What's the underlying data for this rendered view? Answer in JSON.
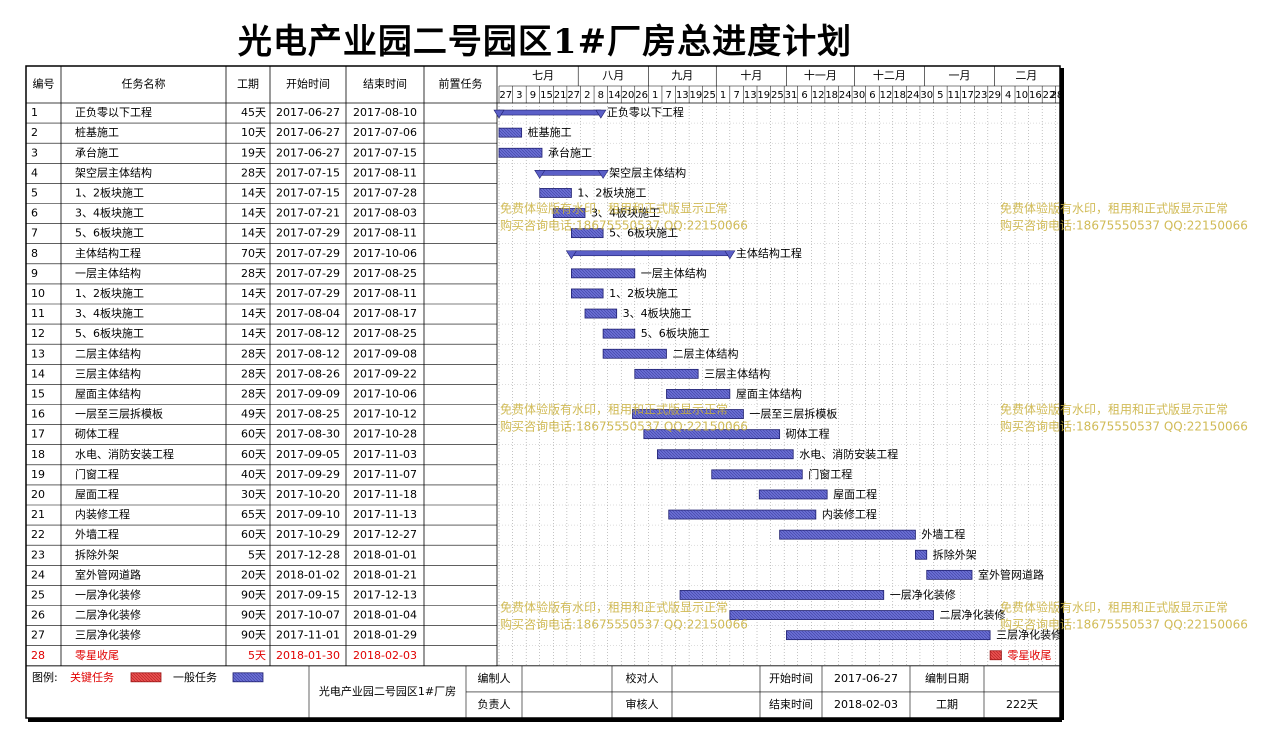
{
  "page_title": "光电产业园二号园区1#厂房总进度计划",
  "colors": {
    "normal_bar": "#5b5fc7",
    "critical_bar": "#e03c3c",
    "critical_text": "#e00000",
    "watermark": "#c9b03a",
    "frame": "#000000"
  },
  "columns": {
    "id": "编号",
    "name": "任务名称",
    "duration": "工期",
    "start": "开始时间",
    "end": "结束时间",
    "pred": "前置任务"
  },
  "months": [
    "七月",
    "八月",
    "九月",
    "十月",
    "十一月",
    "十二月",
    "一月",
    "二月"
  ],
  "day_ticks": [
    "27",
    "3",
    "9",
    "15",
    "21",
    "27",
    "2",
    "8",
    "14",
    "20",
    "26",
    "1",
    "7",
    "13",
    "19",
    "25",
    "1",
    "7",
    "13",
    "19",
    "25",
    "31",
    "6",
    "12",
    "18",
    "24",
    "30",
    "6",
    "12",
    "18",
    "24",
    "30",
    "5",
    "11",
    "17",
    "23",
    "29",
    "4",
    "10",
    "16",
    "22",
    "28"
  ],
  "tasks": [
    {
      "id": "1",
      "name": "正负零以下工程",
      "duration": "45天",
      "start": "2017-06-27",
      "end": "2017-08-10",
      "summary": true,
      "critical": false
    },
    {
      "id": "2",
      "name": "桩基施工",
      "duration": "10天",
      "start": "2017-06-27",
      "end": "2017-07-06",
      "summary": false,
      "critical": false
    },
    {
      "id": "3",
      "name": "承台施工",
      "duration": "19天",
      "start": "2017-06-27",
      "end": "2017-07-15",
      "summary": false,
      "critical": false
    },
    {
      "id": "4",
      "name": "架空层主体结构",
      "duration": "28天",
      "start": "2017-07-15",
      "end": "2017-08-11",
      "summary": true,
      "critical": false
    },
    {
      "id": "5",
      "name": "1、2板块施工",
      "duration": "14天",
      "start": "2017-07-15",
      "end": "2017-07-28",
      "summary": false,
      "critical": false
    },
    {
      "id": "6",
      "name": "3、4板块施工",
      "duration": "14天",
      "start": "2017-07-21",
      "end": "2017-08-03",
      "summary": false,
      "critical": false
    },
    {
      "id": "7",
      "name": "5、6板块施工",
      "duration": "14天",
      "start": "2017-07-29",
      "end": "2017-08-11",
      "summary": false,
      "critical": false
    },
    {
      "id": "8",
      "name": "主体结构工程",
      "duration": "70天",
      "start": "2017-07-29",
      "end": "2017-10-06",
      "summary": true,
      "critical": false
    },
    {
      "id": "9",
      "name": "一层主体结构",
      "duration": "28天",
      "start": "2017-07-29",
      "end": "2017-08-25",
      "summary": false,
      "critical": false
    },
    {
      "id": "10",
      "name": "1、2板块施工",
      "duration": "14天",
      "start": "2017-07-29",
      "end": "2017-08-11",
      "summary": false,
      "critical": false
    },
    {
      "id": "11",
      "name": "3、4板块施工",
      "duration": "14天",
      "start": "2017-08-04",
      "end": "2017-08-17",
      "summary": false,
      "critical": false
    },
    {
      "id": "12",
      "name": "5、6板块施工",
      "duration": "14天",
      "start": "2017-08-12",
      "end": "2017-08-25",
      "summary": false,
      "critical": false
    },
    {
      "id": "13",
      "name": "二层主体结构",
      "duration": "28天",
      "start": "2017-08-12",
      "end": "2017-09-08",
      "summary": false,
      "critical": false
    },
    {
      "id": "14",
      "name": "三层主体结构",
      "duration": "28天",
      "start": "2017-08-26",
      "end": "2017-09-22",
      "summary": false,
      "critical": false
    },
    {
      "id": "15",
      "name": "屋面主体结构",
      "duration": "28天",
      "start": "2017-09-09",
      "end": "2017-10-06",
      "summary": false,
      "critical": false
    },
    {
      "id": "16",
      "name": "一层至三层拆模板",
      "duration": "49天",
      "start": "2017-08-25",
      "end": "2017-10-12",
      "summary": false,
      "critical": false
    },
    {
      "id": "17",
      "name": "砌体工程",
      "duration": "60天",
      "start": "2017-08-30",
      "end": "2017-10-28",
      "summary": false,
      "critical": false
    },
    {
      "id": "18",
      "name": "水电、消防安装工程",
      "duration": "60天",
      "start": "2017-09-05",
      "end": "2017-11-03",
      "summary": false,
      "critical": false
    },
    {
      "id": "19",
      "name": "门窗工程",
      "duration": "40天",
      "start": "2017-09-29",
      "end": "2017-11-07",
      "summary": false,
      "critical": false
    },
    {
      "id": "20",
      "name": "屋面工程",
      "duration": "30天",
      "start": "2017-10-20",
      "end": "2017-11-18",
      "summary": false,
      "critical": false
    },
    {
      "id": "21",
      "name": "内装修工程",
      "duration": "65天",
      "start": "2017-09-10",
      "end": "2017-11-13",
      "summary": false,
      "critical": false
    },
    {
      "id": "22",
      "name": "外墙工程",
      "duration": "60天",
      "start": "2017-10-29",
      "end": "2017-12-27",
      "summary": false,
      "critical": false
    },
    {
      "id": "23",
      "name": "拆除外架",
      "duration": "5天",
      "start": "2017-12-28",
      "end": "2018-01-01",
      "summary": false,
      "critical": false
    },
    {
      "id": "24",
      "name": "室外管网道路",
      "duration": "20天",
      "start": "2018-01-02",
      "end": "2018-01-21",
      "summary": false,
      "critical": false
    },
    {
      "id": "25",
      "name": "一层净化装修",
      "duration": "90天",
      "start": "2017-09-15",
      "end": "2017-12-13",
      "summary": false,
      "critical": false
    },
    {
      "id": "26",
      "name": "二层净化装修",
      "duration": "90天",
      "start": "2017-10-07",
      "end": "2018-01-04",
      "summary": false,
      "critical": false
    },
    {
      "id": "27",
      "name": "三层净化装修",
      "duration": "90天",
      "start": "2017-11-01",
      "end": "2018-01-29",
      "summary": false,
      "critical": false
    },
    {
      "id": "28",
      "name": "零星收尾",
      "duration": "5天",
      "start": "2018-01-30",
      "end": "2018-02-03",
      "summary": false,
      "critical": true
    }
  ],
  "footer": {
    "legend_label": "图例:",
    "critical_label": "关键任务",
    "normal_label": "一般任务",
    "project_name": "光电产业园二号园区1#厂房",
    "editor_label": "编制人",
    "owner_label": "负责人",
    "checker_label": "校对人",
    "reviewer_label": "审核人",
    "start_label": "开始时间",
    "start_value": "2017-06-27",
    "end_label": "结束时间",
    "end_value": "2018-02-03",
    "date_label": "编制日期",
    "duration_label": "工期",
    "duration_value": "222天"
  },
  "watermark": {
    "line1": "免费体验版有水印，租用和正式版显示正常",
    "line2": "购买咨询电话:18675550537 QQ:22150066"
  }
}
